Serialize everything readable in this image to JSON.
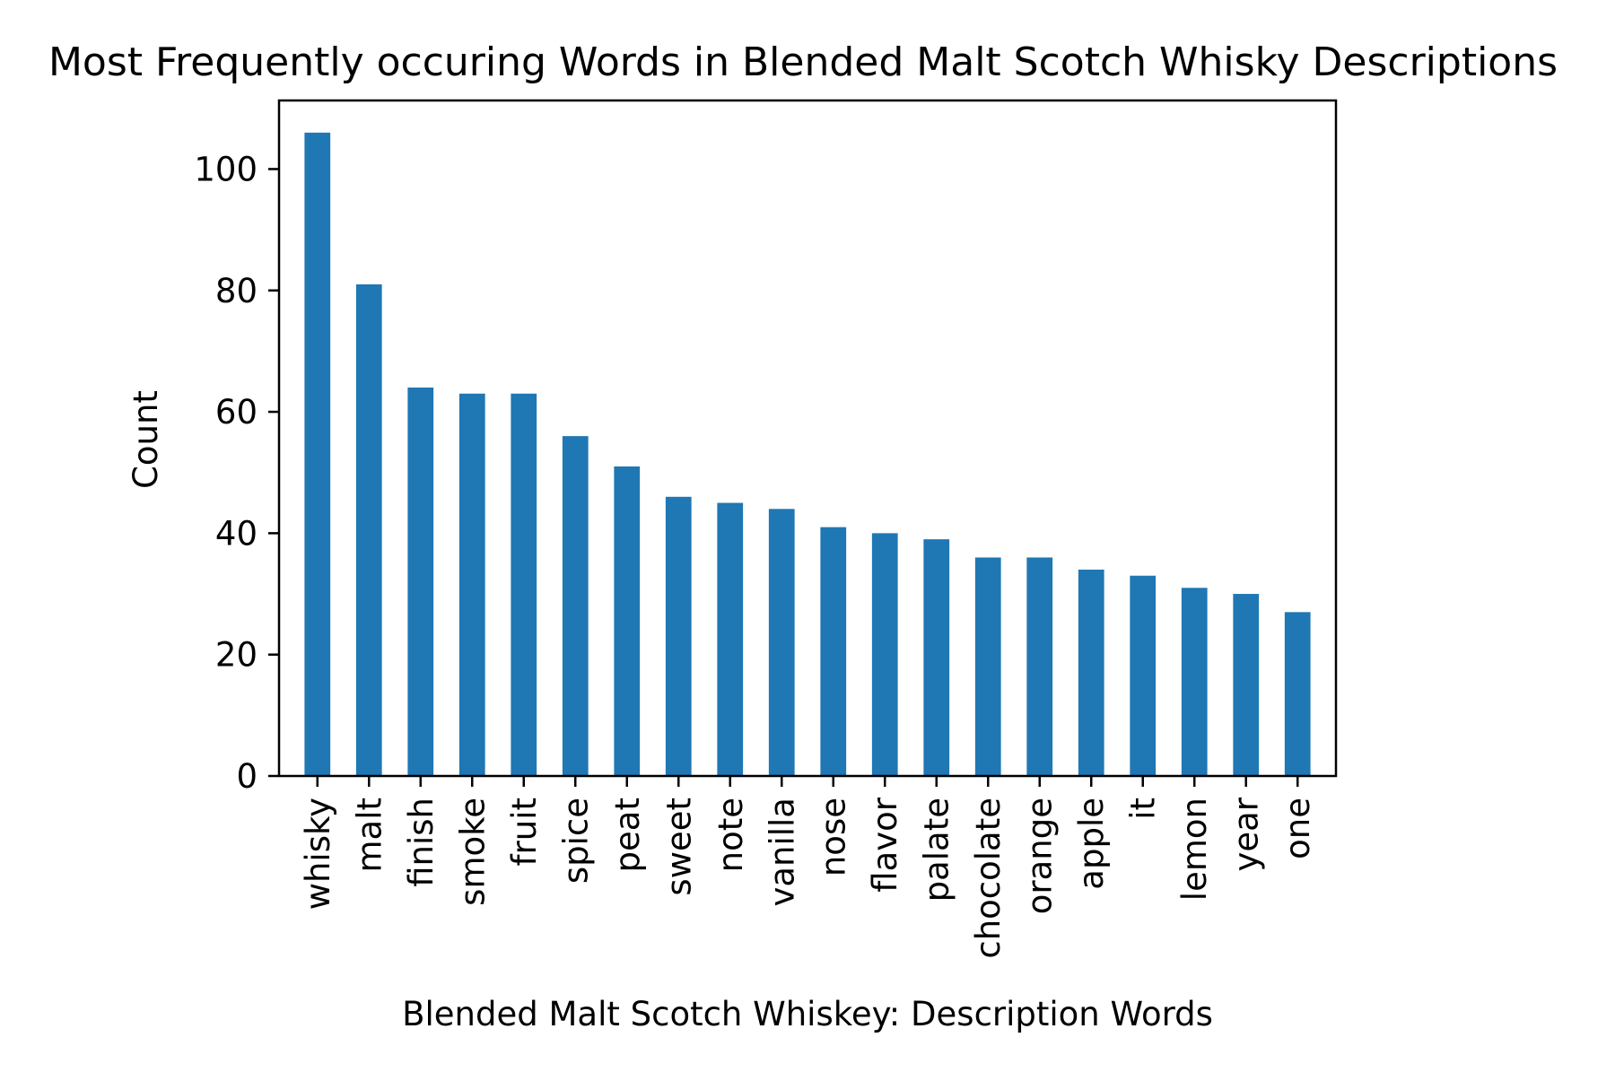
{
  "chart_data": {
    "type": "bar",
    "title": "Most Frequently occuring Words in Blended Malt Scotch Whisky Descriptions",
    "xlabel": "Blended Malt Scotch Whiskey: Description Words",
    "ylabel": "Count",
    "categories": [
      "whisky",
      "malt",
      "finish",
      "smoke",
      "fruit",
      "spice",
      "peat",
      "sweet",
      "note",
      "vanilla",
      "nose",
      "flavor",
      "palate",
      "chocolate",
      "orange",
      "apple",
      "it",
      "lemon",
      "year",
      "one"
    ],
    "values": [
      106,
      81,
      64,
      63,
      63,
      56,
      51,
      46,
      45,
      44,
      41,
      40,
      39,
      36,
      36,
      34,
      33,
      31,
      30,
      27
    ],
    "ylim": [
      0,
      111.3
    ],
    "yticks": [
      0,
      20,
      40,
      60,
      80,
      100
    ],
    "grid": false,
    "legend": "none",
    "bar_color": "#1f77b4"
  }
}
